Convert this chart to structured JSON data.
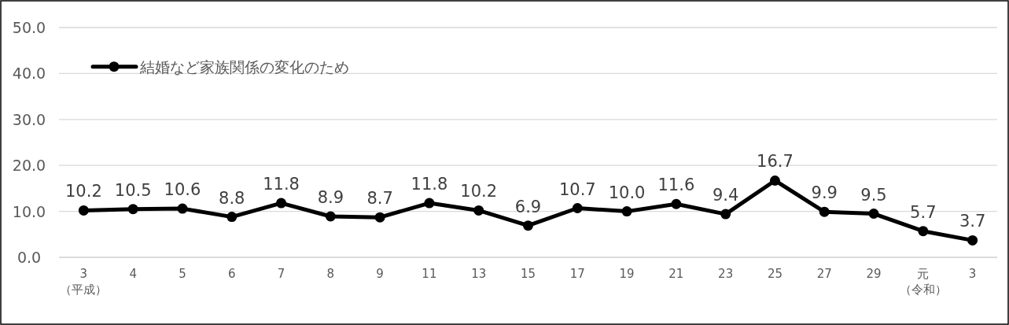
{
  "chart_data": {
    "type": "line",
    "categories": [
      "3（平成）",
      "4",
      "5",
      "6",
      "7",
      "8",
      "9",
      "11",
      "13",
      "15",
      "17",
      "19",
      "21",
      "23",
      "25",
      "27",
      "29",
      "元（令和）",
      "3"
    ],
    "series": [
      {
        "name": "結婚など家族関係の変化のため",
        "color": "#000000",
        "values": [
          10.2,
          10.5,
          10.6,
          8.8,
          11.8,
          8.9,
          8.7,
          11.8,
          10.2,
          6.9,
          10.7,
          10.0,
          11.6,
          9.4,
          16.7,
          9.9,
          9.5,
          5.7,
          3.7
        ],
        "value_labels": [
          "10.2",
          "10.5",
          "10.6",
          "8.8",
          "11.8",
          "8.9",
          "8.7",
          "11.8",
          "10.2",
          "6.9",
          "10.7",
          "10.0",
          "11.6",
          "9.4",
          "16.7",
          "9.9",
          "9.5",
          "5.7",
          "3.7"
        ]
      }
    ],
    "ylim": [
      0,
      50
    ],
    "yticks": [
      {
        "value": 0,
        "label": "0.0"
      },
      {
        "value": 10,
        "label": "10.0"
      },
      {
        "value": 20,
        "label": "20.0"
      },
      {
        "value": 30,
        "label": "30.0"
      },
      {
        "value": 40,
        "label": "40.0"
      },
      {
        "value": 50,
        "label": "50.0"
      }
    ],
    "grid": "y",
    "legend": "top left",
    "marker": "circle",
    "line_style": "solid"
  }
}
